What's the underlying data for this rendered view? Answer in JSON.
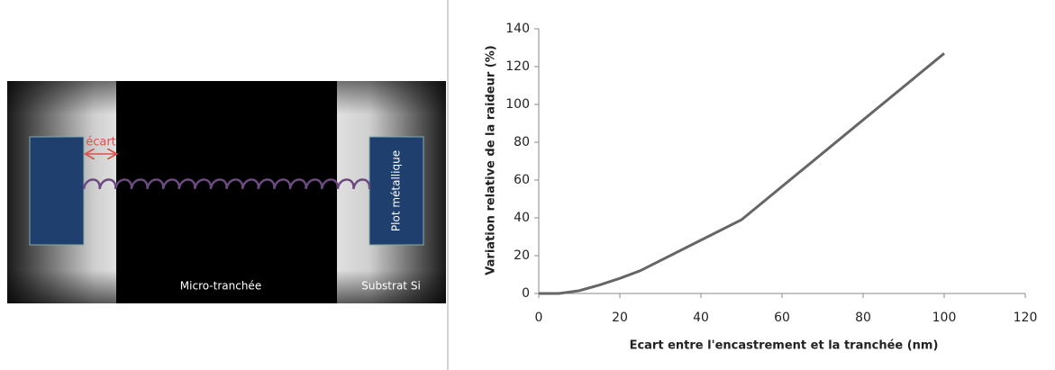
{
  "diagram": {
    "gap_label": "écart",
    "trench_label": "Micro-tranchée",
    "substrate_label": "Substrat Si",
    "pad_label": "Plot métallique"
  },
  "chart_data": {
    "type": "line",
    "x_label": "Ecart entre l'encastrement et la tranchée (nm)",
    "y_label": "Variation relative de la raideur (%)",
    "x": [
      0,
      5,
      10,
      15,
      20,
      25,
      50,
      100
    ],
    "series": [
      {
        "color": "#666666",
        "values": [
          0,
          0,
          1.5,
          4.5,
          8,
          12,
          39,
          127
        ]
      }
    ],
    "xlim": [
      0,
      120
    ],
    "xticks": [
      0,
      20,
      40,
      60,
      80,
      100,
      120
    ],
    "ylim": [
      0,
      140
    ],
    "yticks": [
      0,
      20,
      40,
      60,
      80,
      100,
      120,
      140
    ],
    "grid": false
  }
}
